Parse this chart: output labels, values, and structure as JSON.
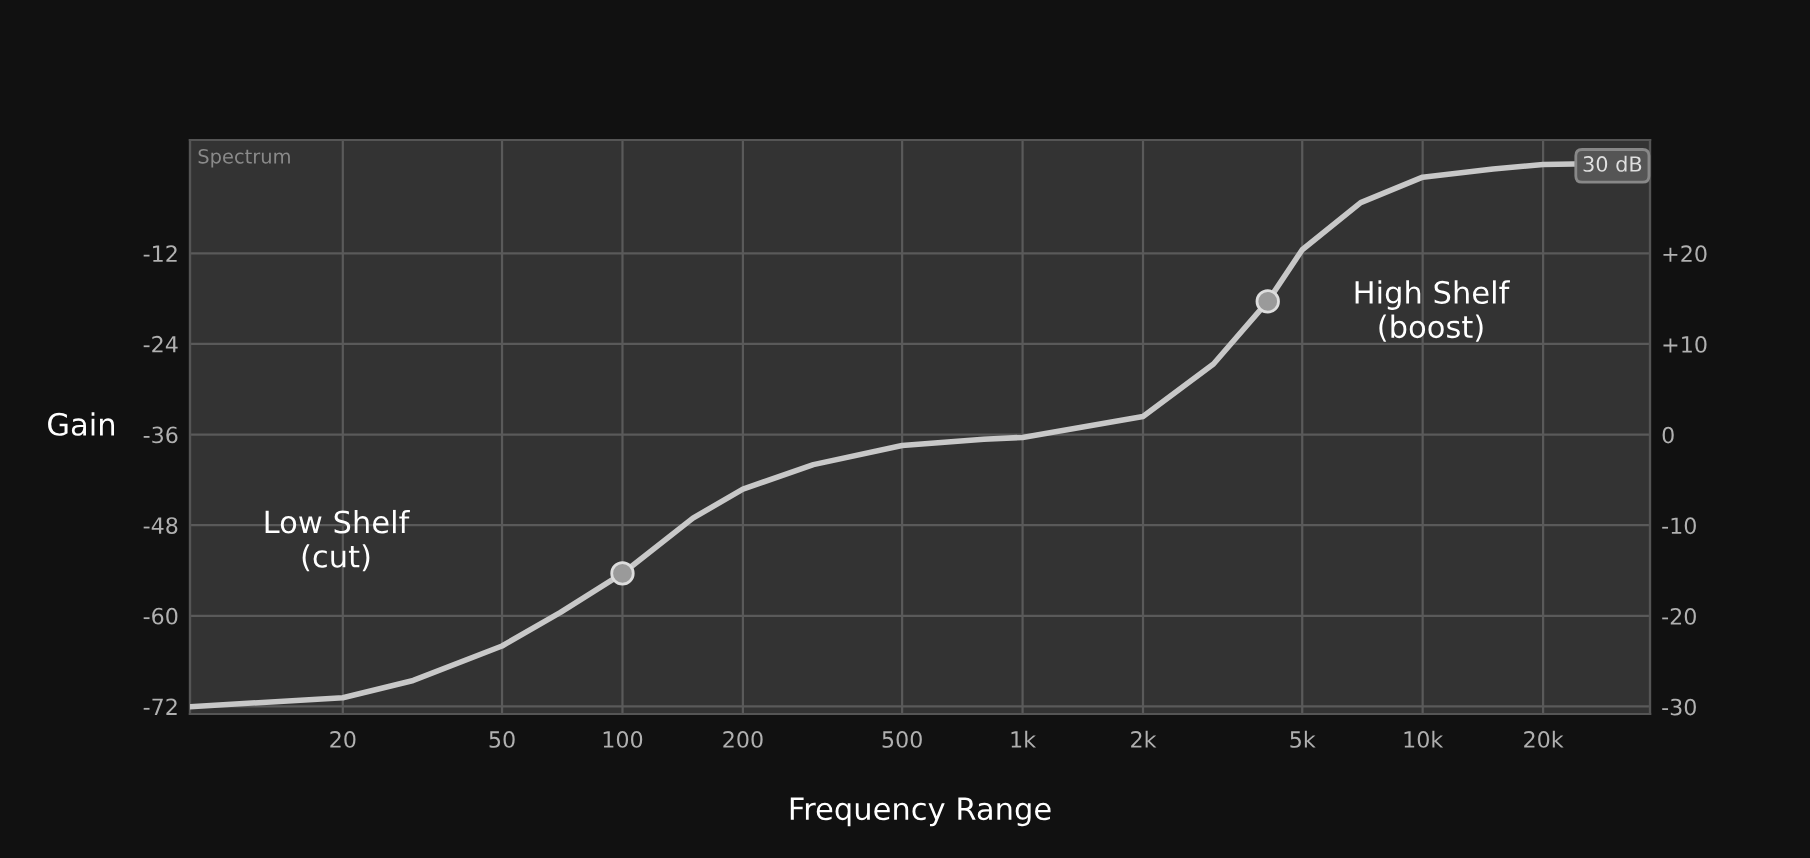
{
  "chart_data": {
    "type": "line",
    "xlabel": "Frequency Range",
    "ylabel": "Gain",
    "x": [
      8.3,
      20,
      30,
      50,
      70,
      100,
      150,
      200,
      300,
      500,
      800,
      1000,
      2000,
      3000,
      4100,
      5000,
      7000,
      10000,
      15000,
      20000,
      37000
    ],
    "series": [
      {
        "color": "#c8c8c8",
        "axis": "y2",
        "values": [
          -30,
          -29,
          -27.1,
          -23.3,
          -19.6,
          -15.3,
          -9.2,
          -6,
          -3.3,
          -1.2,
          -0.5,
          -0.3,
          2,
          7.8,
          14.7,
          20.4,
          25.6,
          28.4,
          29.3,
          29.8,
          30
        ]
      },
      {
        "type": "scatter",
        "color": "#9a9a9a",
        "axis": "y2",
        "marker": "circle",
        "x": [
          100,
          4100
        ],
        "values": [
          -15.3,
          14.7
        ]
      }
    ],
    "log": "x",
    "grid": true,
    "xlim": [
      8.3,
      37000
    ],
    "xticks": [
      20,
      50,
      100,
      200,
      500,
      {
        "value": 1000,
        "label": "1k"
      },
      {
        "value": 2000,
        "label": "2k"
      },
      {
        "value": 5000,
        "label": "5k"
      },
      {
        "value": 10000,
        "label": "10k"
      },
      {
        "value": 20000,
        "label": "20k"
      }
    ],
    "ylim": [
      -73,
      3
    ],
    "yticks": [
      -12,
      -24,
      -36,
      -48,
      -60,
      -72
    ],
    "y2lim": [
      -30.8,
      32.5
    ],
    "y2ticks": [
      {
        "value": 20,
        "label": "+20"
      },
      {
        "value": 10,
        "label": "+10"
      },
      0,
      -10,
      -20,
      -30
    ],
    "annotations": [
      "Spectrum",
      "30 dB",
      "Low Shelf\n(cut)",
      "High Shelf\n(boost)"
    ]
  }
}
